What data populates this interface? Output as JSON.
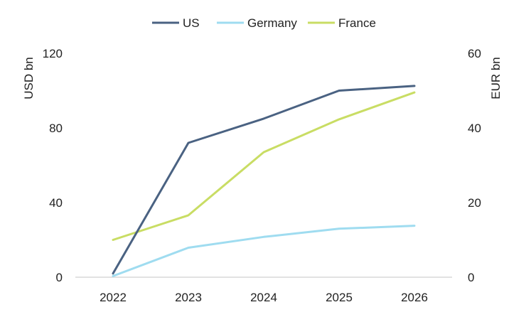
{
  "chart_data": {
    "type": "line",
    "x": [
      "2022",
      "2023",
      "2024",
      "2025",
      "2026"
    ],
    "y_left": {
      "label": "USD bn",
      "lim": [
        0,
        120
      ],
      "ticks": [
        "0",
        "40",
        "80",
        "120"
      ]
    },
    "y_right": {
      "label": "EUR bn",
      "lim": [
        0,
        60
      ],
      "ticks": [
        "0",
        "20",
        "40",
        "60"
      ]
    },
    "series": [
      {
        "name": "US",
        "axis": "left",
        "color": "#4a6282",
        "values": [
          2,
          72,
          85,
          100,
          102.5
        ]
      },
      {
        "name": "Germany",
        "axis": "right",
        "color": "#9fdcf0",
        "values": [
          0.3,
          7.9,
          10.8,
          13,
          13.8
        ]
      },
      {
        "name": "France",
        "axis": "right",
        "color": "#c9dd64",
        "values": [
          10,
          16.6,
          33.5,
          42.3,
          49.5
        ]
      }
    ],
    "legend_position": "top-center",
    "grid": false
  }
}
